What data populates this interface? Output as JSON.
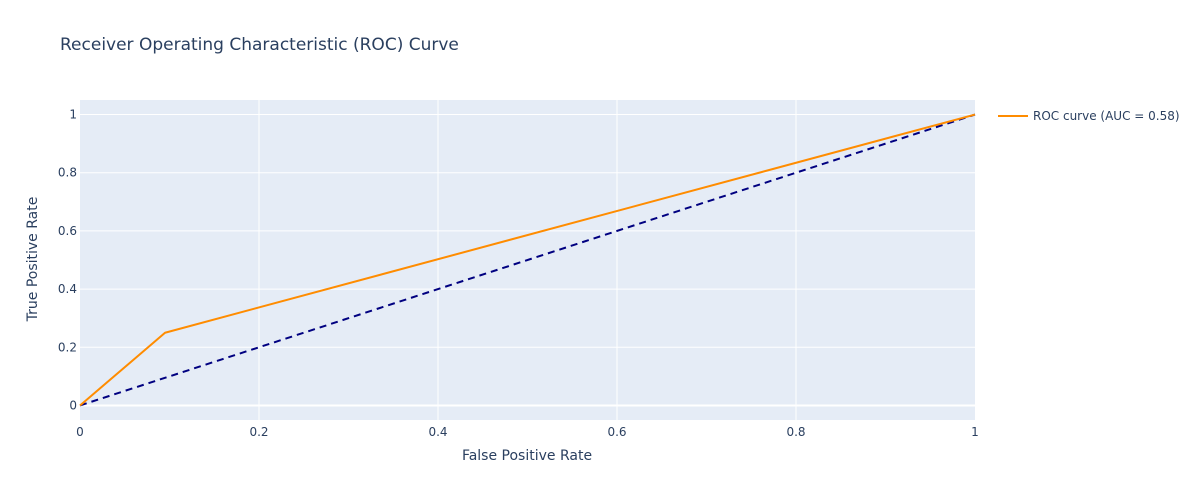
{
  "chart_data": {
    "type": "line",
    "title": "Receiver Operating Characteristic (ROC) Curve",
    "xlabel": "False Positive Rate",
    "ylabel": "True Positive Rate",
    "xlim": [
      0,
      1
    ],
    "ylim": [
      -0.05,
      1.05
    ],
    "x_ticks": [
      0,
      0.2,
      0.4,
      0.6,
      0.8,
      1
    ],
    "x_tick_labels": [
      "0",
      "0.2",
      "0.4",
      "0.6",
      "0.8",
      "1"
    ],
    "y_ticks": [
      0,
      0.2,
      0.4,
      0.6,
      0.8,
      1
    ],
    "y_tick_labels": [
      "0",
      "0.2",
      "0.4",
      "0.6",
      "0.8",
      "1"
    ],
    "grid": true,
    "legend_position": "top-right outside",
    "series": [
      {
        "name": "ROC curve (AUC = 0.58)",
        "color": "#ff8c00",
        "dash": "solid",
        "x": [
          0,
          0.095,
          1
        ],
        "y": [
          0,
          0.25,
          1
        ]
      },
      {
        "color": "#000080",
        "dash": "dashed",
        "show_in_legend": false,
        "x": [
          0,
          1
        ],
        "y": [
          0,
          1
        ]
      }
    ]
  }
}
